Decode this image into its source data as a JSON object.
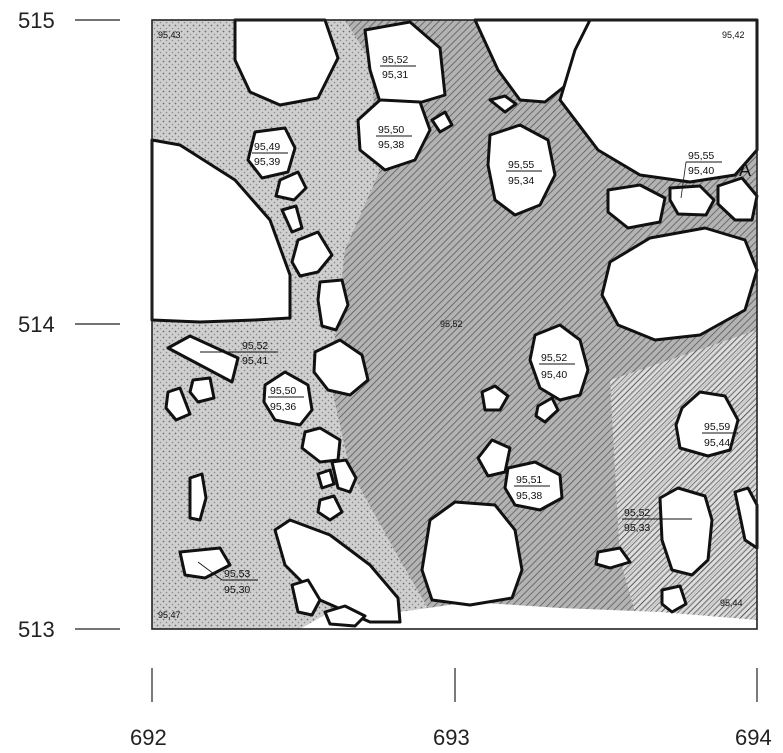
{
  "axes": {
    "y_ticks": [
      "515",
      "514",
      "513"
    ],
    "x_ticks": [
      "692",
      "693",
      "694"
    ]
  },
  "section_label": "A",
  "levels": {
    "corner_top_left": "95,43",
    "corner_top_right": "95,42",
    "corner_bottom_left": "95,47",
    "corner_bottom_right": "95,44",
    "center": "95,52",
    "pairs": [
      {
        "top": "95,52",
        "bottom": "95,31"
      },
      {
        "top": "95,49",
        "bottom": "95,39"
      },
      {
        "top": "95,50",
        "bottom": "95,38"
      },
      {
        "top": "95,55",
        "bottom": "95,34"
      },
      {
        "top": "95,55",
        "bottom": "95,40"
      },
      {
        "top": "95,52",
        "bottom": "95,41"
      },
      {
        "top": "95,52",
        "bottom": "95,40"
      },
      {
        "top": "95,50",
        "bottom": "95,36"
      },
      {
        "top": "95,59",
        "bottom": "95,44"
      },
      {
        "top": "95,51",
        "bottom": "95,38"
      },
      {
        "top": "95,52",
        "bottom": "95,33"
      },
      {
        "top": "95,53",
        "bottom": "95,30"
      }
    ]
  },
  "colors": {
    "dotted_fill": "#c9c9c9",
    "hatched_fill": "#a9a9a9",
    "stone_outline": "#111111"
  }
}
